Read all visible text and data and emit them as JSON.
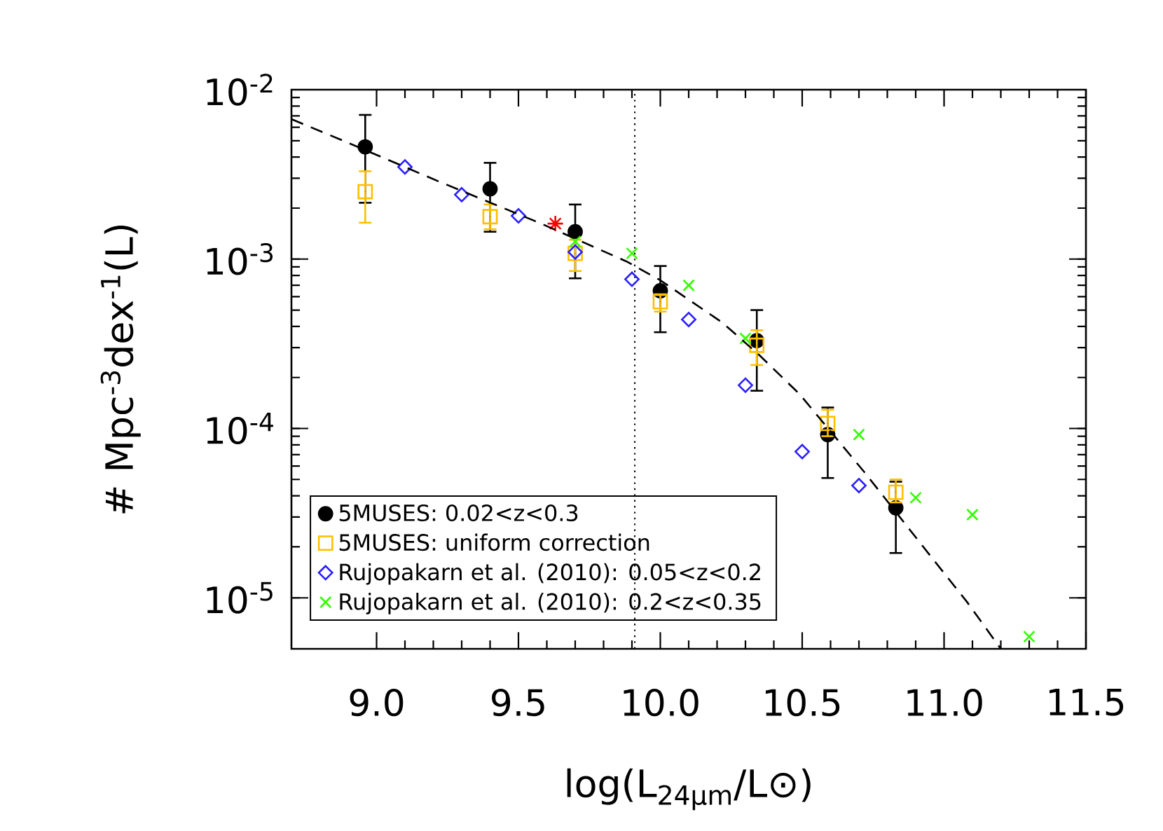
{
  "chart_data": {
    "type": "scatter",
    "xlabel": "log(L$_{24μm}$/L⊙)",
    "ylabel": "# Mpc$^{-3}$dex$^{-1}$(L)",
    "xlim": [
      8.7,
      11.5
    ],
    "ylim": [
      5e-06,
      0.01
    ],
    "log": "y",
    "xticks": [
      {
        "value": 9,
        "label": "9.0"
      },
      {
        "value": 9.5,
        "label": "9.5"
      },
      {
        "value": 10,
        "label": "10.0"
      },
      {
        "value": 10.5,
        "label": "10.5"
      },
      {
        "value": 11,
        "label": "11.0"
      },
      {
        "value": 11.5,
        "label": "11.5"
      }
    ],
    "yticks": [
      {
        "value": 1e-05,
        "label": "10$^{-5}$"
      },
      {
        "value": 0.0001,
        "label": "10$^{-4}$"
      },
      {
        "value": 0.001,
        "label": "10$^{-3}$"
      },
      {
        "value": 0.01,
        "label": "10$^{-2}$"
      }
    ],
    "legend": "bottom left",
    "ref_lines": [
      {
        "axis": "x",
        "value": 9.91,
        "line_style": "dotted",
        "color": "#000000"
      }
    ],
    "series": [
      {
        "name": "5MUSES: 0.02<z<0.3",
        "color": "#000000",
        "marker": "circle",
        "x": [
          8.96,
          9.4,
          9.7,
          10.0,
          10.34,
          10.59,
          10.83
        ],
        "values": [
          0.0046,
          0.0026,
          0.00145,
          0.00065,
          0.00033,
          9.2e-05,
          3.4e-05
        ],
        "errors": [
          [
            0.00215,
            0.0071
          ],
          [
            0.00145,
            0.0037
          ],
          [
            0.00077,
            0.0021
          ],
          [
            0.00037,
            0.00091
          ],
          [
            0.000167,
            0.0005
          ],
          [
            5.1e-05,
            0.000133
          ],
          [
            1.84e-05,
            4.85e-05
          ]
        ]
      },
      {
        "name": "5MUSES: uniform correction",
        "color": "#ffbf00",
        "marker": "square",
        "x": [
          8.96,
          9.4,
          9.7,
          10.0,
          10.34,
          10.59,
          10.83
        ],
        "values": [
          0.0025,
          0.00178,
          0.00108,
          0.00056,
          0.00031,
          0.000107,
          4.2e-05
        ],
        "errors": [
          [
            0.00164,
            0.0033
          ],
          [
            0.0015,
            0.0021
          ],
          [
            0.00085,
            0.0013
          ],
          [
            0.00049,
            0.00062
          ],
          [
            0.000237,
            0.00038
          ],
          [
            9e-05,
            0.000129
          ],
          [
            3.66e-05,
            5e-05
          ]
        ]
      },
      {
        "name": "Rujopakarn et al. (2010): 0.05<z<0.2",
        "color": "#2a1fff",
        "marker": "diamond",
        "x": [
          9.1,
          9.3,
          9.5,
          9.7,
          9.9,
          10.1,
          10.3,
          10.5,
          10.7
        ],
        "values": [
          0.0035,
          0.0024,
          0.0018,
          0.0011,
          0.00076,
          0.00044,
          0.00018,
          7.3e-05,
          4.6e-05
        ]
      },
      {
        "name": "Rujopakarn et al. (2010): 0.2<z<0.35",
        "color": "#33ff00",
        "marker": "cross",
        "x": [
          9.7,
          9.9,
          10.1,
          10.3,
          10.7,
          10.9,
          11.1,
          11.3
        ],
        "values": [
          0.00127,
          0.00108,
          0.0007,
          0.00034,
          9.2e-05,
          3.9e-05,
          3.1e-05,
          5.9e-06
        ]
      },
      {
        "color": "#ff0000",
        "x": [
          9.63
        ],
        "values": [
          0.00162
        ]
      },
      {
        "type": "line",
        "color": "#000000",
        "marker": "none",
        "line_style": "dashed",
        "x": [
          8.7,
          8.87,
          9.22,
          9.58,
          9.88,
          10.0,
          10.22,
          10.35,
          10.49,
          10.72,
          10.96,
          11.08,
          11.2
        ],
        "values": [
          0.0067,
          0.0051,
          0.00287,
          0.00162,
          0.00097,
          0.00075,
          0.00042,
          0.00027,
          0.00016,
          5.5e-05,
          1.7e-05,
          9.5e-06,
          5e-06
        ]
      }
    ]
  }
}
